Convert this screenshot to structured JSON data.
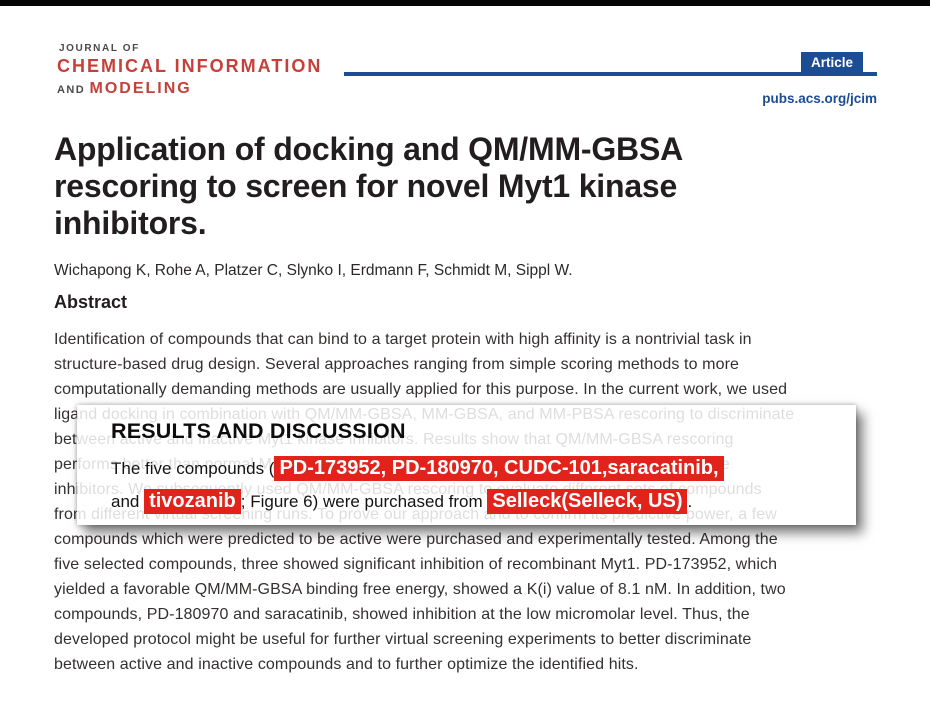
{
  "colors": {
    "accent_red": "#c5403a",
    "highlight_red": "#e2231b",
    "blue": "#1b4c94",
    "title_color": "#221d1e",
    "body_color": "#343030"
  },
  "header": {
    "journal_small": "JOURNAL OF",
    "journal_main": "CHEMICAL INFORMATION",
    "journal_and": "AND",
    "journal_sub": "MODELING",
    "badge": "Article",
    "site": "pubs.acs.org/jcim"
  },
  "title": {
    "lines": [
      "Application of docking and QM/MM-GBSA",
      "rescoring to screen for novel Myt1 kinase",
      "inhibitors."
    ]
  },
  "authors": "Wichapong K, Rohe A, Platzer C, Slynko I, Erdmann F, Schmidt M, Sippl W.",
  "abstract": {
    "heading": "Abstract",
    "lines": [
      "Identification of compounds that can bind to a target protein with high affinity is a nontrivial task in",
      "structure-based drug design. Several approaches ranging from simple scoring methods to more",
      "computationally demanding methods are usually applied for this purpose. In the current work, we used",
      "ligand docking in combination with QM/MM-GBSA, MM-GBSA, and MM-PBSA rescoring to discriminate",
      "between active and inactive Myt1 kinase inhibitors. Results show that QM/MM-GBSA rescoring",
      "performs better than normal MM-GBSA and MM-PBSA rescoring in ranking active and inactive",
      "inhibitors. We subsequently used QM/MM-GBSA rescoring to evaluate different sets of compounds",
      "from different virtual screening runs. To prove our approach and to confirm its predictive power, a few",
      "compounds which were predicted to be active were purchased and experimentally tested. Among the",
      "five selected compounds, three showed significant inhibition of recombinant Myt1. PD-173952, which",
      "yielded a favorable QM/MM-GBSA binding free energy, showed a K(i) value of 8.1 nM. In addition, two",
      "compounds, PD-180970 and saracatinib, showed inhibition at the low micromolar level. Thus, the",
      "developed protocol might be useful for further virtual screening experiments to better discriminate",
      "between active and inactive compounds and to further optimize the identified hits."
    ]
  },
  "overlay": {
    "heading": "RESULTS AND DISCUSSION",
    "line1_prefix": "The five compounds (",
    "line1_highlight": "PD-173952, PD-180970, CUDC-101,saracatinib,",
    "line2_prefix": "and ",
    "line2_highlight1": "tivozanib",
    "line2_mid": "; Figure 6) were purchased from ",
    "line2_highlight2": "Selleck(Selleck, US)",
    "line2_suffix": "."
  }
}
